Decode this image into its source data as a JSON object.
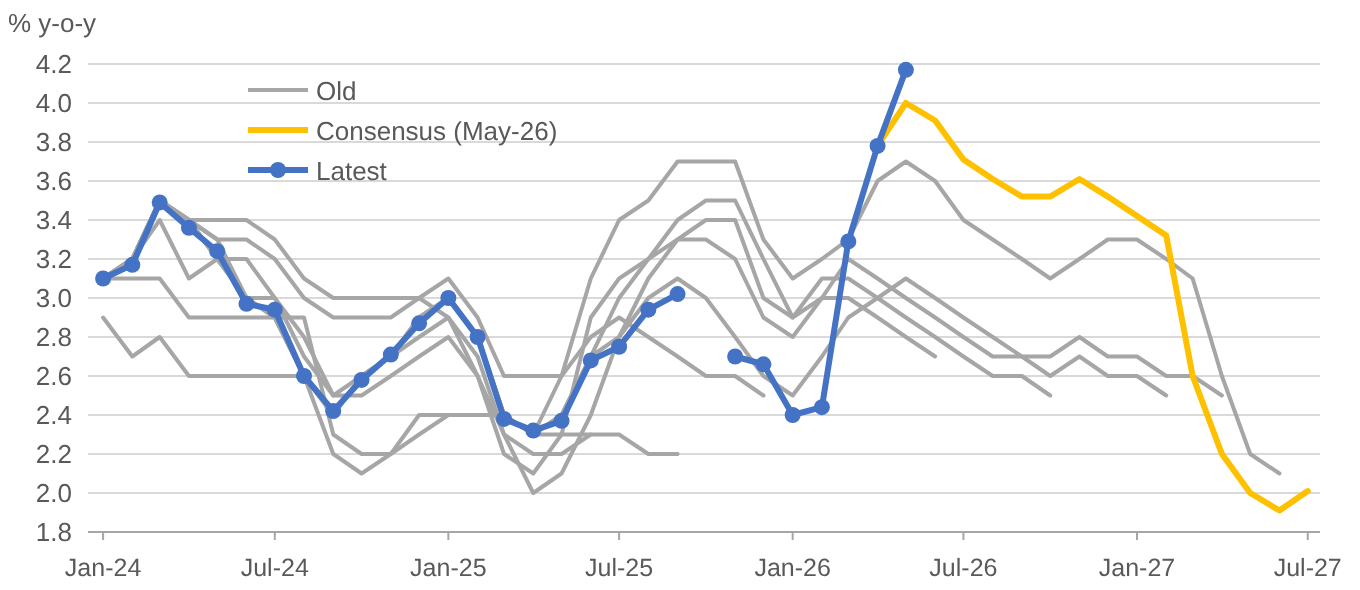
{
  "chart_data": {
    "type": "line",
    "ylabel": "% y-o-y",
    "x": [
      "2024-01",
      "2024-02",
      "2024-03",
      "2024-04",
      "2024-05",
      "2024-06",
      "2024-07",
      "2024-08",
      "2024-09",
      "2024-10",
      "2024-11",
      "2024-12",
      "2025-01",
      "2025-02",
      "2025-03",
      "2025-04",
      "2025-05",
      "2025-06",
      "2025-07",
      "2025-08",
      "2025-09",
      "2025-10",
      "2025-11",
      "2025-12",
      "2026-01",
      "2026-02",
      "2026-03",
      "2026-04",
      "2026-05",
      "2026-06",
      "2026-07",
      "2026-08",
      "2026-09",
      "2026-10",
      "2026-11",
      "2026-12",
      "2027-01",
      "2027-02",
      "2027-03",
      "2027-04",
      "2027-05",
      "2027-06",
      "2027-07"
    ],
    "xlim": [
      "2023-12-16",
      "2027-07-14"
    ],
    "xticks": [
      {
        "value": "2024-01",
        "label": "Jan-24"
      },
      {
        "value": "2024-07",
        "label": "Jul-24"
      },
      {
        "value": "2025-01",
        "label": "Jan-25"
      },
      {
        "value": "2025-07",
        "label": "Jul-25"
      },
      {
        "value": "2026-01",
        "label": "Jan-26"
      },
      {
        "value": "2026-07",
        "label": "Jul-26"
      },
      {
        "value": "2027-01",
        "label": "Jan-27"
      },
      {
        "value": "2027-07",
        "label": "Jul-27"
      }
    ],
    "ylim": [
      1.8,
      4.2
    ],
    "yticks": [
      1.8,
      {
        "value": 2,
        "label": "2.0"
      },
      2.2,
      2.4,
      2.6,
      2.8,
      {
        "value": 3,
        "label": "3.0"
      },
      3.2,
      3.4,
      3.6,
      3.8,
      {
        "value": 4,
        "label": "4.0"
      },
      4.2
    ],
    "grid": "y",
    "legend": "top left",
    "series": [
      {
        "name": "Old",
        "color": "#a6a6a6",
        "marker": "none",
        "values": [
          2.9,
          2.7,
          2.8,
          2.6,
          2.6,
          2.6,
          2.6,
          2.6,
          2.2,
          2.1,
          2.2,
          2.3,
          2.4,
          2.4,
          null,
          null,
          null,
          null,
          null,
          null,
          null,
          null,
          null,
          null,
          null,
          null,
          null,
          null,
          null,
          null,
          null,
          null,
          null,
          null,
          null,
          null,
          null,
          null,
          null,
          null,
          null,
          null,
          null
        ]
      },
      {
        "color": "#a6a6a6",
        "marker": "none",
        "values": [
          3.1,
          3.1,
          3.1,
          2.9,
          2.9,
          2.9,
          2.9,
          2.9,
          2.3,
          2.2,
          2.2,
          2.4,
          2.4,
          2.4,
          2.4,
          2.3,
          2.3,
          2.3,
          null,
          null,
          null,
          null,
          null,
          null,
          null,
          null,
          null,
          null,
          null,
          null,
          null,
          null,
          null,
          null,
          null,
          null,
          null,
          null,
          null,
          null,
          null,
          null,
          null
        ]
      },
      {
        "color": "#a6a6a6",
        "marker": "none",
        "values": [
          3.1,
          3.2,
          3.4,
          3.1,
          3.2,
          3.2,
          3.0,
          2.8,
          2.5,
          2.5,
          2.6,
          2.7,
          2.8,
          2.6,
          2.3,
          2.2,
          2.2,
          2.3,
          2.3,
          2.2,
          2.2,
          null,
          null,
          null,
          null,
          null,
          null,
          null,
          null,
          null,
          null,
          null,
          null,
          null,
          null,
          null,
          null,
          null,
          null,
          null,
          null,
          null,
          null
        ]
      },
      {
        "color": "#a6a6a6",
        "marker": "none",
        "values": [
          3.1,
          3.2,
          3.5,
          3.4,
          3.4,
          3.4,
          3.3,
          3.1,
          3.0,
          3.0,
          3.0,
          3.0,
          3.1,
          2.9,
          2.6,
          2.6,
          2.6,
          2.8,
          2.9,
          2.8,
          2.7,
          2.6,
          2.6,
          2.5,
          null,
          null,
          null,
          null,
          null,
          null,
          null,
          null,
          null,
          null,
          null,
          null,
          null,
          null,
          null,
          null,
          null,
          null,
          null
        ]
      },
      {
        "color": "#a6a6a6",
        "marker": "none",
        "values": [
          3.1,
          3.2,
          3.5,
          3.4,
          3.3,
          3.3,
          3.2,
          3.0,
          2.9,
          2.9,
          2.9,
          3.0,
          2.9,
          2.6,
          2.2,
          2.1,
          2.3,
          2.9,
          3.1,
          3.2,
          3.3,
          3.3,
          3.2,
          2.9,
          2.8,
          3.0,
          3.0,
          2.9,
          2.8,
          2.7,
          null,
          null,
          null,
          null,
          null,
          null,
          null,
          null,
          null,
          null,
          null,
          null,
          null
        ]
      },
      {
        "color": "#a6a6a6",
        "marker": "none",
        "values": [
          3.1,
          3.2,
          3.5,
          3.4,
          3.3,
          3.0,
          3.0,
          2.7,
          2.5,
          2.6,
          2.7,
          2.8,
          2.9,
          2.7,
          2.3,
          2.0,
          2.1,
          2.4,
          2.8,
          3.1,
          3.3,
          3.4,
          3.4,
          3.0,
          2.9,
          3.1,
          3.1,
          3.0,
          2.9,
          2.8,
          2.7,
          2.6,
          2.6,
          2.5,
          null,
          null,
          null,
          null,
          null,
          null,
          null,
          null,
          null
        ]
      },
      {
        "color": "#a6a6a6",
        "marker": "none",
        "values": [
          3.1,
          3.2,
          3.5,
          3.4,
          3.2,
          3.0,
          2.9,
          2.6,
          2.4,
          2.6,
          2.7,
          2.9,
          3.0,
          2.8,
          2.4,
          2.3,
          2.4,
          2.7,
          3.0,
          3.2,
          3.4,
          3.5,
          3.5,
          3.2,
          2.9,
          3.0,
          3.2,
          3.1,
          3.0,
          2.9,
          2.8,
          2.7,
          2.7,
          2.6,
          2.7,
          2.6,
          2.6,
          2.5,
          null,
          null,
          null,
          null,
          null
        ]
      },
      {
        "color": "#a6a6a6",
        "marker": "none",
        "values": [
          3.1,
          3.2,
          3.5,
          3.4,
          3.2,
          3.0,
          2.9,
          2.6,
          2.4,
          2.6,
          2.7,
          2.9,
          3.0,
          2.8,
          2.4,
          2.3,
          2.4,
          2.7,
          2.8,
          3.0,
          3.1,
          3.0,
          2.8,
          2.6,
          2.5,
          2.7,
          2.9,
          3.0,
          3.1,
          3.0,
          2.9,
          2.8,
          2.7,
          2.7,
          2.8,
          2.7,
          2.7,
          2.6,
          2.6,
          2.5,
          null,
          null,
          null
        ]
      },
      {
        "color": "#a6a6a6",
        "marker": "none",
        "values": [
          3.1,
          3.2,
          3.5,
          3.4,
          3.2,
          3.0,
          2.9,
          2.6,
          2.4,
          2.6,
          2.7,
          2.9,
          3.0,
          2.8,
          2.4,
          2.3,
          2.6,
          3.1,
          3.4,
          3.5,
          3.7,
          3.7,
          3.7,
          3.3,
          3.1,
          3.2,
          3.3,
          3.6,
          3.7,
          3.6,
          3.4,
          3.3,
          3.2,
          3.1,
          3.2,
          3.3,
          3.3,
          3.2,
          3.1,
          2.6,
          2.2,
          2.1,
          null
        ]
      },
      {
        "name": "Consensus (May-26)",
        "color": "#ffc000",
        "marker": "none",
        "values": [
          null,
          null,
          null,
          null,
          null,
          null,
          null,
          null,
          null,
          null,
          null,
          null,
          null,
          null,
          null,
          null,
          null,
          null,
          null,
          null,
          null,
          null,
          null,
          null,
          null,
          null,
          null,
          3.78,
          4.0,
          3.91,
          3.71,
          3.61,
          3.52,
          3.52,
          3.61,
          3.52,
          3.42,
          3.32,
          2.6,
          2.2,
          2.0,
          1.91,
          2.01
        ]
      },
      {
        "name": "Latest",
        "color": "#4472c4",
        "marker": "circle",
        "values": [
          3.1,
          3.17,
          3.49,
          3.36,
          3.24,
          2.97,
          2.94,
          2.6,
          2.42,
          2.58,
          2.71,
          2.87,
          3.0,
          2.8,
          2.38,
          2.32,
          2.37,
          2.68,
          2.75,
          2.94,
          3.02,
          null,
          2.7,
          2.66,
          2.4,
          2.44,
          3.29,
          3.78,
          4.17,
          null,
          null,
          null,
          null,
          null,
          null,
          null,
          null,
          null,
          null,
          null,
          null,
          null,
          null
        ]
      }
    ]
  }
}
